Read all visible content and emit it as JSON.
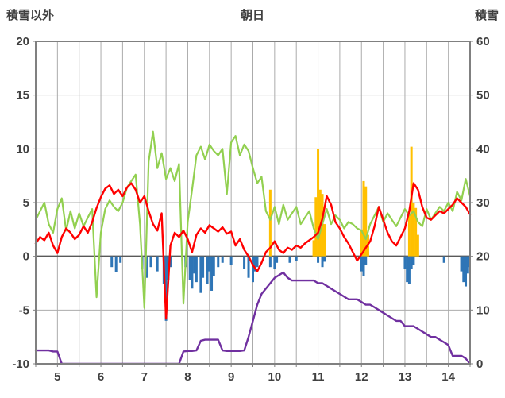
{
  "header": {
    "left_axis_title": "積雪以外",
    "title": "朝日",
    "right_axis_title": "積雪"
  },
  "chart_data": {
    "type": "composite",
    "title": "朝日",
    "left_axis": {
      "title": "積雪以外",
      "range": [
        -10,
        20
      ],
      "ticks": [
        20,
        15,
        10,
        5,
        0,
        -5,
        -10
      ]
    },
    "right_axis": {
      "title": "積雪",
      "range": [
        0,
        60
      ],
      "ticks": [
        60,
        50,
        40,
        30,
        20,
        10,
        0
      ]
    },
    "x_axis": {
      "range": [
        4.5,
        14.5
      ],
      "ticks": [
        5,
        6,
        7,
        8,
        9,
        10,
        11,
        12,
        13,
        14
      ],
      "grid_step": 0.5
    },
    "style": {
      "grid_color": "#ABABAB",
      "border_color": "#808080",
      "zero_line_color": "#595959",
      "text_color": "#404040"
    },
    "series": [
      {
        "name": "orange-bars",
        "type": "bar",
        "axis": "left",
        "color": "#FFC000",
        "points": [
          [
            9.9,
            6.2
          ],
          [
            10.9,
            1.5
          ],
          [
            10.95,
            5.5
          ],
          [
            11.0,
            10.0
          ],
          [
            11.05,
            6.2
          ],
          [
            11.1,
            5.8
          ],
          [
            11.15,
            3.0
          ],
          [
            12.0,
            2.5
          ],
          [
            12.05,
            7.0
          ],
          [
            12.1,
            6.5
          ],
          [
            12.15,
            2.0
          ],
          [
            13.1,
            4.0
          ],
          [
            13.15,
            10.2
          ],
          [
            13.2,
            5.0
          ],
          [
            13.25,
            4.5
          ],
          [
            13.3,
            2.0
          ]
        ]
      },
      {
        "name": "blue-bars",
        "type": "bar",
        "axis": "left",
        "color": "#2E75B6",
        "points": [
          [
            6.25,
            -1.0
          ],
          [
            6.35,
            -1.5
          ],
          [
            6.45,
            -0.6
          ],
          [
            6.95,
            -1.2
          ],
          [
            7.05,
            -2.0
          ],
          [
            7.15,
            -1.0
          ],
          [
            7.3,
            -1.4
          ],
          [
            7.45,
            -2.6
          ],
          [
            7.5,
            -6.0
          ],
          [
            7.55,
            -2.2
          ],
          [
            7.6,
            -1.0
          ],
          [
            7.95,
            -1.0
          ],
          [
            8.05,
            -2.2
          ],
          [
            8.1,
            -3.0
          ],
          [
            8.15,
            -1.6
          ],
          [
            8.2,
            -2.4
          ],
          [
            8.3,
            -3.4
          ],
          [
            8.35,
            -2.0
          ],
          [
            8.45,
            -2.6
          ],
          [
            8.5,
            -1.4
          ],
          [
            8.55,
            -3.2
          ],
          [
            8.6,
            -1.8
          ],
          [
            8.7,
            -1.0
          ],
          [
            8.8,
            -0.6
          ],
          [
            9.0,
            -0.8
          ],
          [
            9.3,
            -1.2
          ],
          [
            9.4,
            -2.0
          ],
          [
            9.5,
            -2.4
          ],
          [
            9.55,
            -1.4
          ],
          [
            9.6,
            -1.0
          ],
          [
            9.9,
            -1.0
          ],
          [
            10.0,
            -1.2
          ],
          [
            10.05,
            -0.6
          ],
          [
            10.35,
            -0.6
          ],
          [
            10.5,
            -0.4
          ],
          [
            11.0,
            -0.6
          ],
          [
            11.1,
            -1.0
          ],
          [
            11.15,
            -0.5
          ],
          [
            12.0,
            -1.4
          ],
          [
            12.05,
            -1.8
          ],
          [
            12.1,
            -0.8
          ],
          [
            13.0,
            -1.2
          ],
          [
            13.05,
            -2.4
          ],
          [
            13.1,
            -2.6
          ],
          [
            13.15,
            -1.2
          ],
          [
            13.2,
            -0.8
          ],
          [
            13.9,
            -0.6
          ],
          [
            14.3,
            -1.4
          ],
          [
            14.35,
            -2.4
          ],
          [
            14.4,
            -2.8
          ],
          [
            14.45,
            -1.6
          ],
          [
            14.5,
            -1.0
          ]
        ]
      },
      {
        "name": "green-line",
        "type": "line",
        "axis": "left",
        "color": "#92D050",
        "width": 2.2,
        "x_start": 4.5,
        "x_step": 0.1,
        "values": [
          3.4,
          4.2,
          5.0,
          3.0,
          2.2,
          4.4,
          5.4,
          2.4,
          4.2,
          2.6,
          4.0,
          2.8,
          3.6,
          4.4,
          -3.8,
          2.2,
          4.4,
          5.2,
          4.6,
          4.2,
          5.0,
          6.4,
          7.0,
          7.6,
          3.0,
          -4.8,
          8.8,
          11.6,
          8.2,
          9.6,
          7.2,
          8.2,
          7.0,
          8.6,
          -4.4,
          3.2,
          6.2,
          9.4,
          10.2,
          9.0,
          10.4,
          9.8,
          9.4,
          10.0,
          5.8,
          10.6,
          11.2,
          9.4,
          10.4,
          9.8,
          8.2,
          6.8,
          7.4,
          4.2,
          3.4,
          4.6,
          3.0,
          4.8,
          3.4,
          4.0,
          4.6,
          3.0,
          3.6,
          4.2,
          2.6,
          1.6,
          3.0,
          4.4,
          3.0,
          3.8,
          3.4,
          2.6,
          3.2,
          3.0,
          2.6,
          2.4,
          1.6,
          3.0,
          3.8,
          4.6,
          3.2,
          4.0,
          3.4,
          2.8,
          3.6,
          4.4,
          3.8,
          4.2,
          3.2,
          2.8,
          4.4,
          3.4,
          4.0,
          4.6,
          4.2,
          5.0,
          4.2,
          6.0,
          5.2,
          7.2,
          5.6
        ]
      },
      {
        "name": "red-line",
        "type": "line",
        "axis": "left",
        "color": "#FF0000",
        "width": 2.4,
        "x_start": 4.5,
        "x_step": 0.1,
        "values": [
          1.2,
          1.8,
          1.5,
          2.2,
          1.0,
          0.3,
          1.8,
          2.6,
          2.2,
          1.6,
          2.0,
          2.8,
          2.2,
          3.2,
          4.5,
          5.5,
          6.3,
          6.6,
          5.8,
          6.2,
          5.6,
          6.4,
          6.8,
          6.2,
          5.0,
          5.6,
          4.2,
          3.0,
          2.4,
          4.0,
          -5.8,
          1.0,
          2.2,
          1.8,
          2.4,
          1.6,
          0.4,
          2.0,
          2.6,
          2.2,
          2.9,
          2.6,
          2.3,
          2.7,
          2.1,
          2.3,
          1.0,
          1.6,
          0.6,
          0.0,
          -0.8,
          -1.4,
          -0.6,
          0.4,
          0.8,
          1.4,
          0.6,
          0.3,
          0.8,
          0.6,
          1.0,
          0.8,
          1.2,
          1.5,
          1.8,
          2.2,
          3.5,
          5.6,
          4.8,
          3.2,
          2.6,
          1.8,
          1.2,
          0.4,
          -0.4,
          0.2,
          0.8,
          1.4,
          2.8,
          4.6,
          3.4,
          2.2,
          1.4,
          1.0,
          1.8,
          2.6,
          4.2,
          6.8,
          6.2,
          4.6,
          3.6,
          3.4,
          3.8,
          4.2,
          4.0,
          4.4,
          4.8,
          5.4,
          5.0,
          4.6,
          3.9
        ]
      },
      {
        "name": "purple-line",
        "type": "line",
        "axis": "right",
        "color": "#7030A0",
        "width": 2.4,
        "x_start": 4.5,
        "x_step": 0.1,
        "values": [
          2.5,
          2.5,
          2.5,
          2.5,
          2.3,
          2.3,
          0,
          0,
          0,
          0,
          0,
          0,
          0,
          0,
          0,
          0,
          0,
          0,
          0,
          0,
          0,
          0,
          0,
          0,
          0,
          0,
          0,
          0,
          0,
          0,
          0,
          0,
          0,
          0,
          2.3,
          2.4,
          2.4,
          2.5,
          4.3,
          4.5,
          4.5,
          4.5,
          4.5,
          2.5,
          2.4,
          2.4,
          2.4,
          2.4,
          2.5,
          5.0,
          8.0,
          11.0,
          13.0,
          14.0,
          15.0,
          16.0,
          16.5,
          17.0,
          16.0,
          15.5,
          15.5,
          15.5,
          15.5,
          15.5,
          15.5,
          15.0,
          15.0,
          14.5,
          14.0,
          13.5,
          13.0,
          12.5,
          12.0,
          12.0,
          12.0,
          11.5,
          11.0,
          11.0,
          10.5,
          10.0,
          9.5,
          9.0,
          8.5,
          8.0,
          8.0,
          7.0,
          7.0,
          7.0,
          6.5,
          6.0,
          5.5,
          5.0,
          5.0,
          4.5,
          4.0,
          3.5,
          1.5,
          1.5,
          1.5,
          1.0,
          0
        ]
      }
    ]
  }
}
